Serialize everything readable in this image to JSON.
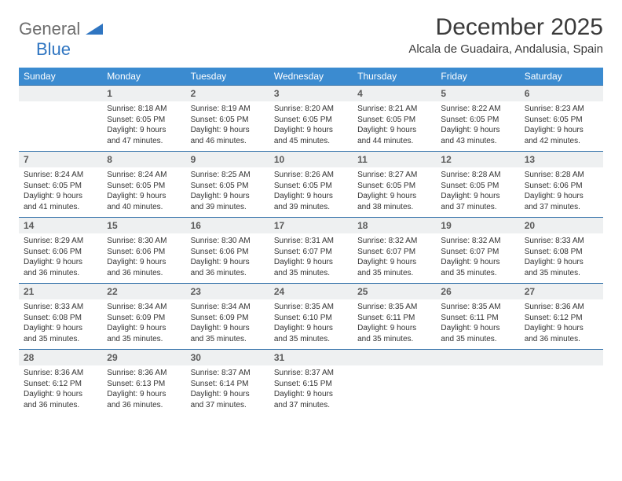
{
  "brand": {
    "part1": "General",
    "part2": "Blue"
  },
  "title": "December 2025",
  "location": "Alcala de Guadaira, Andalusia, Spain",
  "colors": {
    "header_bg": "#3b8bd0",
    "header_text": "#ffffff",
    "daynum_bg": "#eef0f1",
    "daynum_border": "#2f6fa8",
    "body_text": "#333333",
    "logo_gray": "#6d6d6d",
    "logo_blue": "#2f75c1"
  },
  "weekdays": [
    "Sunday",
    "Monday",
    "Tuesday",
    "Wednesday",
    "Thursday",
    "Friday",
    "Saturday"
  ],
  "weeks": [
    [
      null,
      {
        "n": "1",
        "sr": "Sunrise: 8:18 AM",
        "ss": "Sunset: 6:05 PM",
        "d1": "Daylight: 9 hours",
        "d2": "and 47 minutes."
      },
      {
        "n": "2",
        "sr": "Sunrise: 8:19 AM",
        "ss": "Sunset: 6:05 PM",
        "d1": "Daylight: 9 hours",
        "d2": "and 46 minutes."
      },
      {
        "n": "3",
        "sr": "Sunrise: 8:20 AM",
        "ss": "Sunset: 6:05 PM",
        "d1": "Daylight: 9 hours",
        "d2": "and 45 minutes."
      },
      {
        "n": "4",
        "sr": "Sunrise: 8:21 AM",
        "ss": "Sunset: 6:05 PM",
        "d1": "Daylight: 9 hours",
        "d2": "and 44 minutes."
      },
      {
        "n": "5",
        "sr": "Sunrise: 8:22 AM",
        "ss": "Sunset: 6:05 PM",
        "d1": "Daylight: 9 hours",
        "d2": "and 43 minutes."
      },
      {
        "n": "6",
        "sr": "Sunrise: 8:23 AM",
        "ss": "Sunset: 6:05 PM",
        "d1": "Daylight: 9 hours",
        "d2": "and 42 minutes."
      }
    ],
    [
      {
        "n": "7",
        "sr": "Sunrise: 8:24 AM",
        "ss": "Sunset: 6:05 PM",
        "d1": "Daylight: 9 hours",
        "d2": "and 41 minutes."
      },
      {
        "n": "8",
        "sr": "Sunrise: 8:24 AM",
        "ss": "Sunset: 6:05 PM",
        "d1": "Daylight: 9 hours",
        "d2": "and 40 minutes."
      },
      {
        "n": "9",
        "sr": "Sunrise: 8:25 AM",
        "ss": "Sunset: 6:05 PM",
        "d1": "Daylight: 9 hours",
        "d2": "and 39 minutes."
      },
      {
        "n": "10",
        "sr": "Sunrise: 8:26 AM",
        "ss": "Sunset: 6:05 PM",
        "d1": "Daylight: 9 hours",
        "d2": "and 39 minutes."
      },
      {
        "n": "11",
        "sr": "Sunrise: 8:27 AM",
        "ss": "Sunset: 6:05 PM",
        "d1": "Daylight: 9 hours",
        "d2": "and 38 minutes."
      },
      {
        "n": "12",
        "sr": "Sunrise: 8:28 AM",
        "ss": "Sunset: 6:05 PM",
        "d1": "Daylight: 9 hours",
        "d2": "and 37 minutes."
      },
      {
        "n": "13",
        "sr": "Sunrise: 8:28 AM",
        "ss": "Sunset: 6:06 PM",
        "d1": "Daylight: 9 hours",
        "d2": "and 37 minutes."
      }
    ],
    [
      {
        "n": "14",
        "sr": "Sunrise: 8:29 AM",
        "ss": "Sunset: 6:06 PM",
        "d1": "Daylight: 9 hours",
        "d2": "and 36 minutes."
      },
      {
        "n": "15",
        "sr": "Sunrise: 8:30 AM",
        "ss": "Sunset: 6:06 PM",
        "d1": "Daylight: 9 hours",
        "d2": "and 36 minutes."
      },
      {
        "n": "16",
        "sr": "Sunrise: 8:30 AM",
        "ss": "Sunset: 6:06 PM",
        "d1": "Daylight: 9 hours",
        "d2": "and 36 minutes."
      },
      {
        "n": "17",
        "sr": "Sunrise: 8:31 AM",
        "ss": "Sunset: 6:07 PM",
        "d1": "Daylight: 9 hours",
        "d2": "and 35 minutes."
      },
      {
        "n": "18",
        "sr": "Sunrise: 8:32 AM",
        "ss": "Sunset: 6:07 PM",
        "d1": "Daylight: 9 hours",
        "d2": "and 35 minutes."
      },
      {
        "n": "19",
        "sr": "Sunrise: 8:32 AM",
        "ss": "Sunset: 6:07 PM",
        "d1": "Daylight: 9 hours",
        "d2": "and 35 minutes."
      },
      {
        "n": "20",
        "sr": "Sunrise: 8:33 AM",
        "ss": "Sunset: 6:08 PM",
        "d1": "Daylight: 9 hours",
        "d2": "and 35 minutes."
      }
    ],
    [
      {
        "n": "21",
        "sr": "Sunrise: 8:33 AM",
        "ss": "Sunset: 6:08 PM",
        "d1": "Daylight: 9 hours",
        "d2": "and 35 minutes."
      },
      {
        "n": "22",
        "sr": "Sunrise: 8:34 AM",
        "ss": "Sunset: 6:09 PM",
        "d1": "Daylight: 9 hours",
        "d2": "and 35 minutes."
      },
      {
        "n": "23",
        "sr": "Sunrise: 8:34 AM",
        "ss": "Sunset: 6:09 PM",
        "d1": "Daylight: 9 hours",
        "d2": "and 35 minutes."
      },
      {
        "n": "24",
        "sr": "Sunrise: 8:35 AM",
        "ss": "Sunset: 6:10 PM",
        "d1": "Daylight: 9 hours",
        "d2": "and 35 minutes."
      },
      {
        "n": "25",
        "sr": "Sunrise: 8:35 AM",
        "ss": "Sunset: 6:11 PM",
        "d1": "Daylight: 9 hours",
        "d2": "and 35 minutes."
      },
      {
        "n": "26",
        "sr": "Sunrise: 8:35 AM",
        "ss": "Sunset: 6:11 PM",
        "d1": "Daylight: 9 hours",
        "d2": "and 35 minutes."
      },
      {
        "n": "27",
        "sr": "Sunrise: 8:36 AM",
        "ss": "Sunset: 6:12 PM",
        "d1": "Daylight: 9 hours",
        "d2": "and 36 minutes."
      }
    ],
    [
      {
        "n": "28",
        "sr": "Sunrise: 8:36 AM",
        "ss": "Sunset: 6:12 PM",
        "d1": "Daylight: 9 hours",
        "d2": "and 36 minutes."
      },
      {
        "n": "29",
        "sr": "Sunrise: 8:36 AM",
        "ss": "Sunset: 6:13 PM",
        "d1": "Daylight: 9 hours",
        "d2": "and 36 minutes."
      },
      {
        "n": "30",
        "sr": "Sunrise: 8:37 AM",
        "ss": "Sunset: 6:14 PM",
        "d1": "Daylight: 9 hours",
        "d2": "and 37 minutes."
      },
      {
        "n": "31",
        "sr": "Sunrise: 8:37 AM",
        "ss": "Sunset: 6:15 PM",
        "d1": "Daylight: 9 hours",
        "d2": "and 37 minutes."
      },
      null,
      null,
      null
    ]
  ]
}
